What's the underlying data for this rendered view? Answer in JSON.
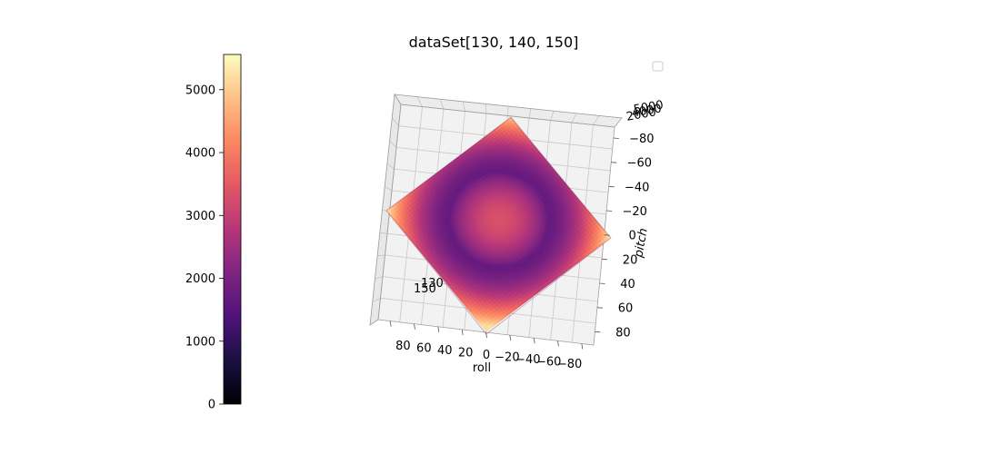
{
  "chart_data": {
    "type": "scatter",
    "subtype": "3d-surface-scatter",
    "title": "dataSet[130, 140, 150]",
    "xlabel": "roll",
    "ylabel": "pitch",
    "zlabel": "",
    "xlim": [
      90,
      -90
    ],
    "ylim": [
      -90,
      90
    ],
    "x_ticks": [
      "80",
      "60",
      "40",
      "20",
      "0",
      "−20",
      "−40",
      "−60",
      "−80"
    ],
    "y_ticks": [
      "−80",
      "−60",
      "−40",
      "−20",
      "0",
      "20",
      "40",
      "60",
      "80"
    ],
    "z_ticks": [
      "2000",
      "4000",
      "5000"
    ],
    "annotations": [
      "130",
      "150"
    ],
    "grid": true,
    "legend": "top-right (empty)",
    "colormap": "magma",
    "colorbar": {
      "ticks": [
        "0",
        "1000",
        "2000",
        "3000",
        "4000",
        "5000"
      ],
      "min": 0,
      "max": 5560
    },
    "value_at_center": 3300,
    "value_at_ring": 1700,
    "value_at_corners": 5200,
    "colors": {
      "pane": "#f2f2f2",
      "grid": "#c8c8c8",
      "axis": "#555555"
    }
  }
}
